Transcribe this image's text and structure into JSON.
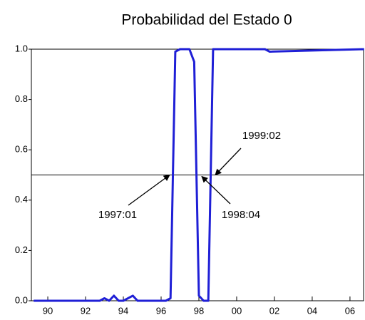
{
  "chart_data": {
    "type": "line",
    "title": "Probabilidad del Estado 0",
    "x": [
      1989.25,
      1992.75,
      1993.0,
      1993.25,
      1993.5,
      1993.75,
      1994.0,
      1994.5,
      1994.75,
      1996.25,
      1996.5,
      1996.75,
      1997.0,
      1997.5,
      1997.75,
      1998.0,
      1998.25,
      1998.5,
      1998.75,
      2001.5,
      2001.75,
      2006.75
    ],
    "series": [
      {
        "name": "Probabilidad del Estado 0",
        "color": "#1f1fd6",
        "values": [
          0,
          0,
          0.01,
          0,
          0.02,
          0,
          0,
          0.02,
          0,
          0,
          0.01,
          0.99,
          1,
          1,
          0.95,
          0.02,
          0,
          0,
          1,
          1,
          0.99,
          1
        ]
      }
    ],
    "xlim": [
      1989.13,
      2006.72
    ],
    "xticks": [
      {
        "value": 1990,
        "label": "90"
      },
      {
        "value": 1992,
        "label": "92"
      },
      {
        "value": 1994,
        "label": "94"
      },
      {
        "value": 1996,
        "label": "96"
      },
      {
        "value": 1998,
        "label": "98"
      },
      {
        "value": 2000,
        "label": "00"
      },
      {
        "value": 2002,
        "label": "02"
      },
      {
        "value": 2004,
        "label": "04"
      },
      {
        "value": 2006,
        "label": "06"
      }
    ],
    "ylim": [
      0,
      1
    ],
    "yticks": [
      {
        "value": 0,
        "label": "0.0"
      },
      {
        "value": 0.2,
        "label": "0.2"
      },
      {
        "value": 0.4,
        "label": "0.4"
      },
      {
        "value": 0.6,
        "label": "0.6"
      },
      {
        "value": 0.8,
        "label": "0.8"
      },
      {
        "value": 1,
        "label": "1.0"
      }
    ],
    "hline": 0.5,
    "annotations": [
      {
        "text": "1997:01"
      },
      {
        "text": "1998:04"
      },
      {
        "text": "1999:02"
      }
    ]
  }
}
